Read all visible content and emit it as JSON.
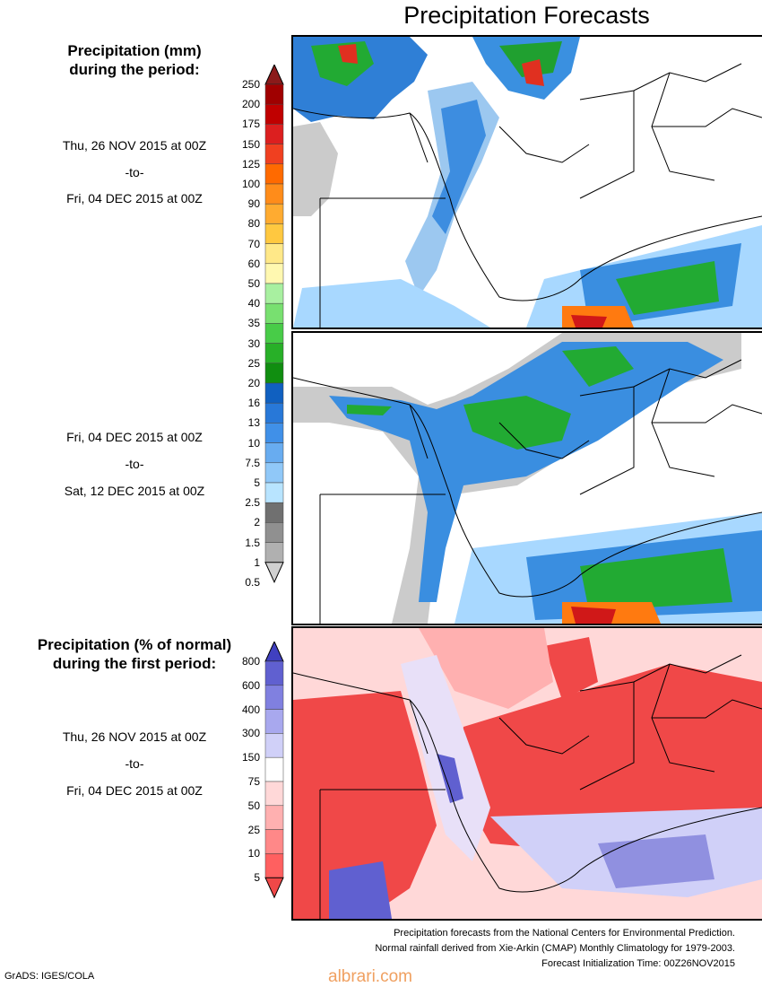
{
  "title": "Precipitation Forecasts",
  "section1": {
    "title_line1": "Precipitation (mm)",
    "title_line2": "during the period:"
  },
  "period1": {
    "from": "Thu, 26 NOV 2015 at 00Z",
    "to_word": "-to-",
    "to": "Fri, 04 DEC 2015 at 00Z"
  },
  "period2": {
    "from": "Fri, 04 DEC 2015 at 00Z",
    "to_word": "-to-",
    "to": "Sat, 12 DEC 2015 at 00Z"
  },
  "section2": {
    "title_line1": "Precipitation (% of normal)",
    "title_line2": "during the first period:"
  },
  "period3": {
    "from": "Thu, 26 NOV 2015 at 00Z",
    "to_word": "-to-",
    "to": "Fri, 04 DEC 2015 at 00Z"
  },
  "precip_colorbar": {
    "labels": [
      "250",
      "200",
      "175",
      "150",
      "125",
      "100",
      "90",
      "80",
      "70",
      "60",
      "50",
      "40",
      "35",
      "30",
      "25",
      "20",
      "16",
      "13",
      "10",
      "7.5",
      "5",
      "2.5",
      "2",
      "1.5",
      "1",
      "0.5"
    ],
    "colors": [
      "#8b1a1a",
      "#a00000",
      "#c00000",
      "#dc1f1f",
      "#f04020",
      "#ff6a00",
      "#ff8c1a",
      "#ffab30",
      "#ffc840",
      "#ffe888",
      "#fff8b0",
      "#a8f0a0",
      "#78e070",
      "#48cc48",
      "#28b028",
      "#108e10",
      "#1060c0",
      "#2878d8",
      "#4090e8",
      "#68acf0",
      "#90c8f8",
      "#b8e4ff",
      "#707070",
      "#909090",
      "#b0b0b0",
      "#d0d0d0"
    ]
  },
  "pct_colorbar": {
    "labels": [
      "800",
      "600",
      "400",
      "300",
      "150",
      "75",
      "50",
      "25",
      "10",
      "5"
    ],
    "colors": [
      "#4040c0",
      "#6060d0",
      "#8080e0",
      "#a8a8ee",
      "#d0d0f8",
      "#ffffff",
      "#ffd8d8",
      "#ffb0b0",
      "#ff8888",
      "#ff6060",
      "#f04848"
    ]
  },
  "footer": {
    "line1": "Precipitation forecasts from the National Centers for Environmental Prediction.",
    "line2": "Normal rainfall derived from Xie-Arkin (CMAP) Monthly Climatology for 1979-2003.",
    "line3": "Forecast Initialization Time: 00Z26NOV2015"
  },
  "credit": "GrADS: IGES/COLA",
  "watermark": "albrari.com"
}
